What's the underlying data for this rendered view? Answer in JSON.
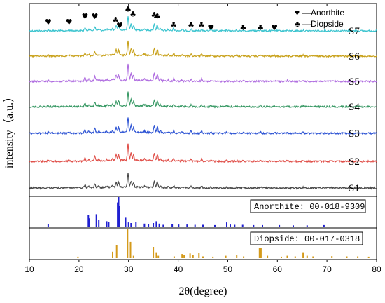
{
  "chart_data": {
    "type": "line",
    "xlabel": "2θ(degree)",
    "ylabel": "intensity（a.u.）",
    "xlim": [
      10,
      80
    ],
    "x_ticks": [
      "10",
      "20",
      "30",
      "40",
      "50",
      "60",
      "70",
      "80"
    ],
    "x_tick_values": [
      10,
      20,
      30,
      40,
      50,
      60,
      70,
      80
    ],
    "legend": [
      {
        "symbol": "♥",
        "label": "—Anorthite"
      },
      {
        "symbol": "♣",
        "label": "—Diopside"
      }
    ],
    "series": [
      {
        "name": "S7",
        "color": "#3cc4cf"
      },
      {
        "name": "S6",
        "color": "#c8a11a"
      },
      {
        "name": "S5",
        "color": "#b06ee0"
      },
      {
        "name": "S4",
        "color": "#3a9a66"
      },
      {
        "name": "S3",
        "color": "#2f55d4"
      },
      {
        "name": "S2",
        "color": "#e0504a"
      },
      {
        "name": "S1",
        "color": "#4a4a4a"
      }
    ],
    "peak_markers": [
      {
        "symbol": "♥",
        "x": 13.8
      },
      {
        "symbol": "♥",
        "x": 18.0
      },
      {
        "symbol": "♥",
        "x": 21.2
      },
      {
        "symbol": "♥",
        "x": 23.2
      },
      {
        "symbol": "♣",
        "x": 27.4
      },
      {
        "symbol": "♥",
        "x": 28.2
      },
      {
        "symbol": "♣",
        "x": 29.9
      },
      {
        "symbol": "♣",
        "x": 30.9
      },
      {
        "symbol": "♣",
        "x": 35.2
      },
      {
        "symbol": "♣",
        "x": 35.8
      },
      {
        "symbol": "♣",
        "x": 39.1
      },
      {
        "symbol": "♣",
        "x": 42.6
      },
      {
        "symbol": "♣",
        "x": 44.7
      },
      {
        "symbol": "♥",
        "x": 46.6
      },
      {
        "symbol": "♣",
        "x": 53.1
      },
      {
        "symbol": "♣",
        "x": 56.6
      },
      {
        "symbol": "♥",
        "x": 59.4
      }
    ],
    "references": [
      {
        "label": "Anorthite: 00-018-9309",
        "color": "#1f1fd1",
        "peaks": [
          {
            "x": 13.8,
            "h": 0.08
          },
          {
            "x": 21.9,
            "h": 0.4
          },
          {
            "x": 22.0,
            "h": 0.28
          },
          {
            "x": 23.5,
            "h": 0.42
          },
          {
            "x": 24.0,
            "h": 0.22
          },
          {
            "x": 25.6,
            "h": 0.18
          },
          {
            "x": 26.0,
            "h": 0.16
          },
          {
            "x": 27.8,
            "h": 0.82
          },
          {
            "x": 28.0,
            "h": 1.0
          },
          {
            "x": 28.2,
            "h": 0.7
          },
          {
            "x": 29.4,
            "h": 0.3
          },
          {
            "x": 30.0,
            "h": 0.14
          },
          {
            "x": 30.5,
            "h": 0.12
          },
          {
            "x": 31.5,
            "h": 0.16
          },
          {
            "x": 33.2,
            "h": 0.1
          },
          {
            "x": 34.0,
            "h": 0.08
          },
          {
            "x": 35.0,
            "h": 0.12
          },
          {
            "x": 35.6,
            "h": 0.18
          },
          {
            "x": 36.2,
            "h": 0.1
          },
          {
            "x": 37.0,
            "h": 0.06
          },
          {
            "x": 38.8,
            "h": 0.08
          },
          {
            "x": 40.1,
            "h": 0.07
          },
          {
            "x": 41.8,
            "h": 0.07
          },
          {
            "x": 43.4,
            "h": 0.06
          },
          {
            "x": 45.0,
            "h": 0.06
          },
          {
            "x": 47.4,
            "h": 0.05
          },
          {
            "x": 49.8,
            "h": 0.14
          },
          {
            "x": 50.5,
            "h": 0.07
          },
          {
            "x": 51.4,
            "h": 0.06
          },
          {
            "x": 53.0,
            "h": 0.06
          },
          {
            "x": 55.2,
            "h": 0.05
          },
          {
            "x": 57.0,
            "h": 0.05
          },
          {
            "x": 60.4,
            "h": 0.05
          },
          {
            "x": 63.2,
            "h": 0.04
          },
          {
            "x": 66.0,
            "h": 0.04
          },
          {
            "x": 69.4,
            "h": 0.05
          }
        ]
      },
      {
        "label": "Diopside: 00-017-0318",
        "color": "#d49a1a",
        "peaks": [
          {
            "x": 19.8,
            "h": 0.05
          },
          {
            "x": 26.8,
            "h": 0.22
          },
          {
            "x": 27.6,
            "h": 0.45
          },
          {
            "x": 29.8,
            "h": 1.0
          },
          {
            "x": 30.4,
            "h": 0.55
          },
          {
            "x": 31.0,
            "h": 0.08
          },
          {
            "x": 35.0,
            "h": 0.38
          },
          {
            "x": 35.6,
            "h": 0.2
          },
          {
            "x": 36.0,
            "h": 0.08
          },
          {
            "x": 39.2,
            "h": 0.06
          },
          {
            "x": 40.8,
            "h": 0.14
          },
          {
            "x": 41.2,
            "h": 0.1
          },
          {
            "x": 42.4,
            "h": 0.16
          },
          {
            "x": 43.0,
            "h": 0.1
          },
          {
            "x": 44.2,
            "h": 0.18
          },
          {
            "x": 45.0,
            "h": 0.06
          },
          {
            "x": 47.0,
            "h": 0.05
          },
          {
            "x": 49.6,
            "h": 0.08
          },
          {
            "x": 51.8,
            "h": 0.12
          },
          {
            "x": 53.2,
            "h": 0.06
          },
          {
            "x": 56.4,
            "h": 0.35
          },
          {
            "x": 56.7,
            "h": 0.35
          },
          {
            "x": 58.0,
            "h": 0.08
          },
          {
            "x": 60.8,
            "h": 0.05
          },
          {
            "x": 62.0,
            "h": 0.08
          },
          {
            "x": 63.6,
            "h": 0.06
          },
          {
            "x": 65.2,
            "h": 0.2
          },
          {
            "x": 66.0,
            "h": 0.08
          },
          {
            "x": 67.2,
            "h": 0.06
          },
          {
            "x": 71.0,
            "h": 0.07
          },
          {
            "x": 74.0,
            "h": 0.06
          },
          {
            "x": 76.2,
            "h": 0.06
          },
          {
            "x": 78.4,
            "h": 0.05
          }
        ]
      }
    ],
    "main_peaks": [
      {
        "x": 13.8,
        "h": 0.05
      },
      {
        "x": 18.0,
        "h": 0.06
      },
      {
        "x": 21.2,
        "h": 0.18
      },
      {
        "x": 22.0,
        "h": 0.1
      },
      {
        "x": 23.2,
        "h": 0.25
      },
      {
        "x": 24.0,
        "h": 0.08
      },
      {
        "x": 25.6,
        "h": 0.06
      },
      {
        "x": 26.8,
        "h": 0.1
      },
      {
        "x": 27.5,
        "h": 0.32
      },
      {
        "x": 28.0,
        "h": 0.3
      },
      {
        "x": 29.9,
        "h": 0.9
      },
      {
        "x": 30.5,
        "h": 0.4
      },
      {
        "x": 31.0,
        "h": 0.3
      },
      {
        "x": 33.2,
        "h": 0.08
      },
      {
        "x": 35.2,
        "h": 0.42
      },
      {
        "x": 35.8,
        "h": 0.36
      },
      {
        "x": 36.4,
        "h": 0.1
      },
      {
        "x": 38.0,
        "h": 0.07
      },
      {
        "x": 39.1,
        "h": 0.14
      },
      {
        "x": 40.8,
        "h": 0.08
      },
      {
        "x": 42.6,
        "h": 0.12
      },
      {
        "x": 44.7,
        "h": 0.12
      },
      {
        "x": 46.6,
        "h": 0.06
      },
      {
        "x": 49.8,
        "h": 0.06
      },
      {
        "x": 51.8,
        "h": 0.05
      },
      {
        "x": 53.1,
        "h": 0.05
      },
      {
        "x": 56.6,
        "h": 0.08
      },
      {
        "x": 59.4,
        "h": 0.04
      },
      {
        "x": 62.0,
        "h": 0.04
      },
      {
        "x": 65.2,
        "h": 0.05
      },
      {
        "x": 68.2,
        "h": 0.03
      },
      {
        "x": 71.0,
        "h": 0.03
      },
      {
        "x": 76.0,
        "h": 0.03
      }
    ]
  }
}
